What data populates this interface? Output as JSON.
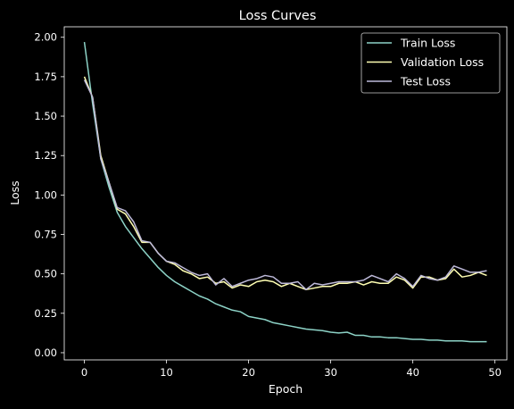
{
  "chart_data": {
    "type": "line",
    "title": "Loss Curves",
    "xlabel": "Epoch",
    "ylabel": "Loss",
    "xlim": [
      -2.45,
      51.45
    ],
    "ylim": [
      -0.0455,
      2.0665
    ],
    "xticks": [
      0,
      10,
      20,
      30,
      40,
      50
    ],
    "yticks": [
      0.0,
      0.25,
      0.5,
      0.75,
      1.0,
      1.25,
      1.5,
      1.75,
      2.0
    ],
    "ytick_labels": [
      "0.00",
      "0.25",
      "0.50",
      "0.75",
      "1.00",
      "1.25",
      "1.50",
      "1.75",
      "2.00"
    ],
    "grid": false,
    "legend_position": "upper right",
    "background": "#000000",
    "x": [
      0,
      1,
      2,
      3,
      4,
      5,
      6,
      7,
      8,
      9,
      10,
      11,
      12,
      13,
      14,
      15,
      16,
      17,
      18,
      19,
      20,
      21,
      22,
      23,
      24,
      25,
      26,
      27,
      28,
      29,
      30,
      31,
      32,
      33,
      34,
      35,
      36,
      37,
      38,
      39,
      40,
      41,
      42,
      43,
      44,
      45,
      46,
      47,
      48,
      49
    ],
    "series": [
      {
        "name": "Train Loss",
        "color": "#8dd3c7",
        "values": [
          1.97,
          1.58,
          1.23,
          1.05,
          0.89,
          0.8,
          0.73,
          0.66,
          0.6,
          0.54,
          0.49,
          0.45,
          0.42,
          0.39,
          0.36,
          0.34,
          0.31,
          0.29,
          0.27,
          0.26,
          0.23,
          0.22,
          0.21,
          0.19,
          0.18,
          0.17,
          0.16,
          0.15,
          0.145,
          0.14,
          0.13,
          0.125,
          0.13,
          0.11,
          0.11,
          0.1,
          0.1,
          0.095,
          0.095,
          0.09,
          0.085,
          0.085,
          0.08,
          0.08,
          0.075,
          0.075,
          0.075,
          0.07,
          0.07,
          0.07
        ]
      },
      {
        "name": "Validation Loss",
        "color": "#ffffb3",
        "values": [
          1.75,
          1.62,
          1.25,
          1.08,
          0.91,
          0.88,
          0.8,
          0.7,
          0.7,
          0.63,
          0.58,
          0.56,
          0.52,
          0.5,
          0.47,
          0.48,
          0.44,
          0.45,
          0.41,
          0.43,
          0.42,
          0.45,
          0.46,
          0.45,
          0.42,
          0.44,
          0.42,
          0.4,
          0.41,
          0.42,
          0.42,
          0.44,
          0.44,
          0.45,
          0.43,
          0.45,
          0.44,
          0.44,
          0.48,
          0.46,
          0.41,
          0.48,
          0.48,
          0.46,
          0.47,
          0.53,
          0.48,
          0.49,
          0.51,
          0.49
        ]
      },
      {
        "name": "Test Loss",
        "color": "#bebada",
        "values": [
          1.73,
          1.62,
          1.23,
          1.08,
          0.92,
          0.9,
          0.83,
          0.71,
          0.7,
          0.63,
          0.58,
          0.57,
          0.54,
          0.51,
          0.49,
          0.5,
          0.43,
          0.47,
          0.42,
          0.44,
          0.46,
          0.47,
          0.49,
          0.48,
          0.44,
          0.44,
          0.45,
          0.4,
          0.44,
          0.43,
          0.44,
          0.45,
          0.45,
          0.45,
          0.46,
          0.49,
          0.47,
          0.45,
          0.5,
          0.47,
          0.42,
          0.49,
          0.47,
          0.46,
          0.48,
          0.55,
          0.53,
          0.51,
          0.51,
          0.52
        ]
      }
    ]
  }
}
